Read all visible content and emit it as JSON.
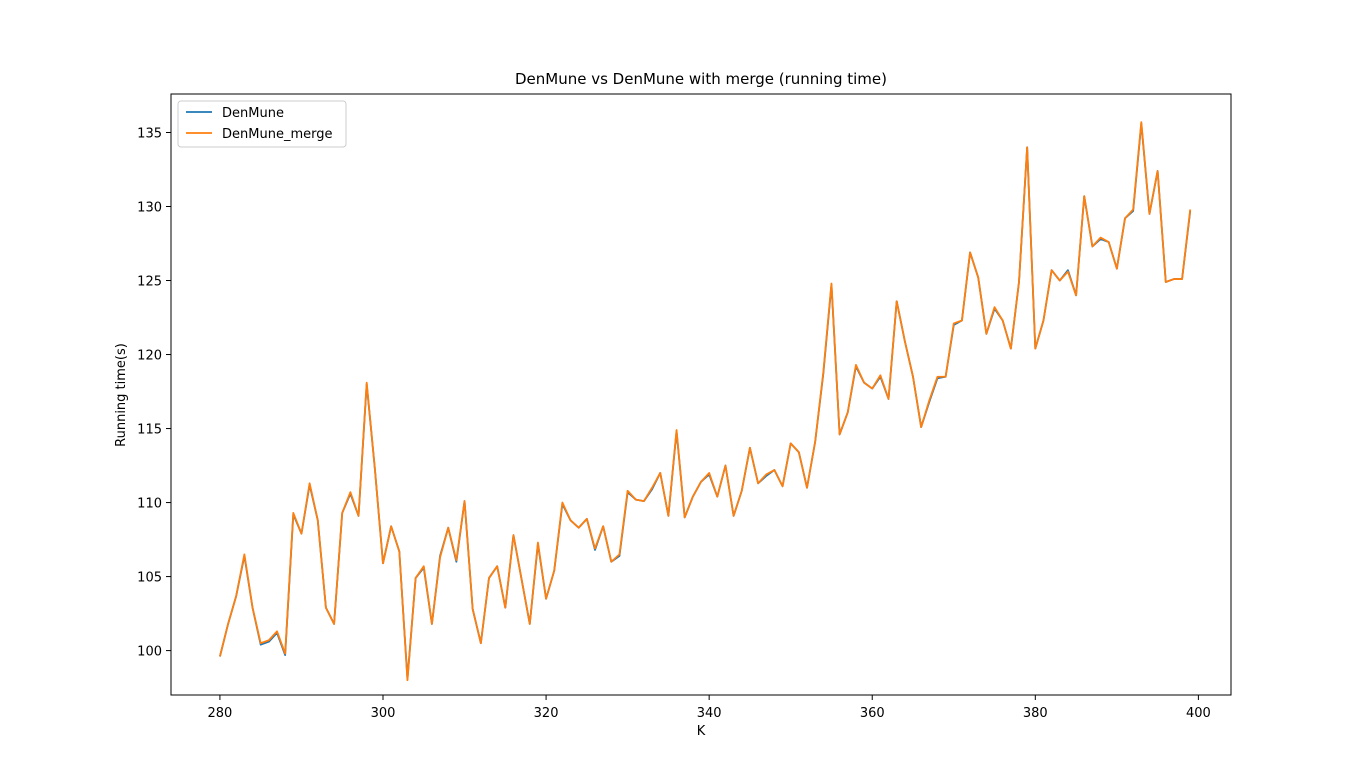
{
  "chart_data": {
    "type": "line",
    "title": "DenMune vs DenMune with merge (running time)",
    "xlabel": "K",
    "ylabel": "Running time(s)",
    "xlim": [
      274,
      404
    ],
    "ylim": [
      97,
      137.6
    ],
    "xticks": [
      280,
      300,
      320,
      340,
      360,
      380,
      400
    ],
    "yticks": [
      100,
      105,
      110,
      115,
      120,
      125,
      130,
      135
    ],
    "grid": false,
    "legend_position": "top-left",
    "x": [
      280,
      281,
      282,
      283,
      284,
      285,
      286,
      287,
      288,
      289,
      290,
      291,
      292,
      293,
      294,
      295,
      296,
      297,
      298,
      299,
      300,
      301,
      302,
      303,
      304,
      305,
      306,
      307,
      308,
      309,
      310,
      311,
      312,
      313,
      314,
      315,
      316,
      317,
      318,
      319,
      320,
      321,
      322,
      323,
      324,
      325,
      326,
      327,
      328,
      329,
      330,
      331,
      332,
      333,
      334,
      335,
      336,
      337,
      338,
      339,
      340,
      341,
      342,
      343,
      344,
      345,
      346,
      347,
      348,
      349,
      350,
      351,
      352,
      353,
      354,
      355,
      356,
      357,
      358,
      359,
      360,
      361,
      362,
      363,
      364,
      365,
      366,
      367,
      368,
      369,
      370,
      371,
      372,
      373,
      374,
      375,
      376,
      377,
      378,
      379,
      380,
      381,
      382,
      383,
      384,
      385,
      386,
      387,
      388,
      389,
      390,
      391,
      392,
      393,
      394,
      395,
      396,
      397,
      398,
      399
    ],
    "series": [
      {
        "name": "DenMune",
        "color": "#1f77b4",
        "values": [
          99.6,
          101.8,
          103.7,
          106.4,
          102.9,
          100.4,
          100.6,
          101.2,
          99.7,
          109.2,
          107.9,
          111.2,
          108.8,
          102.9,
          101.8,
          109.3,
          110.6,
          109.1,
          118.0,
          112.3,
          105.9,
          108.4,
          106.7,
          98.1,
          104.9,
          105.6,
          101.8,
          106.4,
          108.3,
          106.0,
          110.1,
          102.8,
          100.5,
          104.9,
          105.7,
          102.9,
          107.8,
          104.8,
          101.8,
          107.2,
          103.5,
          105.4,
          109.9,
          108.8,
          108.3,
          108.9,
          106.8,
          108.4,
          106.0,
          106.4,
          110.7,
          110.2,
          110.1,
          110.9,
          112.0,
          109.1,
          114.8,
          109.0,
          110.4,
          111.4,
          111.9,
          110.4,
          112.5,
          109.1,
          110.8,
          113.7,
          111.3,
          111.8,
          112.2,
          111.1,
          114.0,
          113.4,
          111.0,
          114.1,
          118.7,
          124.7,
          114.6,
          116.1,
          119.2,
          118.1,
          117.7,
          118.5,
          117.0,
          123.6,
          120.9,
          118.5,
          115.1,
          116.8,
          118.4,
          118.5,
          122.0,
          122.3,
          126.9,
          125.2,
          121.4,
          123.1,
          122.3,
          120.4,
          124.9,
          134.0,
          120.4,
          122.3,
          125.7,
          125.0,
          125.7,
          124.0,
          130.7,
          127.3,
          127.8,
          127.6,
          125.8,
          129.2,
          129.7,
          135.6,
          129.5,
          132.4,
          124.9,
          125.1,
          125.1,
          129.7
        ]
      },
      {
        "name": "DenMune_merge",
        "color": "#ff7f0e",
        "values": [
          99.6,
          101.8,
          103.7,
          106.5,
          102.9,
          100.5,
          100.7,
          101.3,
          99.8,
          109.3,
          107.9,
          111.3,
          108.8,
          102.9,
          101.8,
          109.3,
          110.7,
          109.1,
          118.1,
          112.3,
          105.9,
          108.4,
          106.7,
          98.0,
          104.9,
          105.7,
          101.8,
          106.3,
          108.3,
          106.1,
          110.1,
          102.8,
          100.5,
          104.9,
          105.7,
          102.9,
          107.8,
          104.8,
          101.8,
          107.3,
          103.5,
          105.4,
          110.0,
          108.8,
          108.3,
          108.9,
          106.9,
          108.4,
          106.0,
          106.5,
          110.8,
          110.2,
          110.1,
          111.0,
          112.0,
          109.1,
          114.9,
          109.0,
          110.4,
          111.4,
          112.0,
          110.4,
          112.5,
          109.1,
          110.8,
          113.7,
          111.3,
          111.9,
          112.2,
          111.1,
          114.0,
          113.4,
          111.0,
          114.1,
          118.8,
          124.8,
          114.6,
          116.1,
          119.3,
          118.1,
          117.7,
          118.6,
          117.0,
          123.6,
          120.9,
          118.5,
          115.1,
          116.9,
          118.5,
          118.5,
          122.1,
          122.3,
          126.9,
          125.2,
          121.4,
          123.2,
          122.3,
          120.4,
          124.9,
          134.0,
          120.4,
          122.3,
          125.7,
          125.0,
          125.6,
          124.0,
          130.7,
          127.3,
          127.9,
          127.6,
          125.8,
          129.2,
          129.8,
          135.7,
          129.5,
          132.4,
          124.9,
          125.1,
          125.1,
          129.8
        ]
      }
    ]
  }
}
